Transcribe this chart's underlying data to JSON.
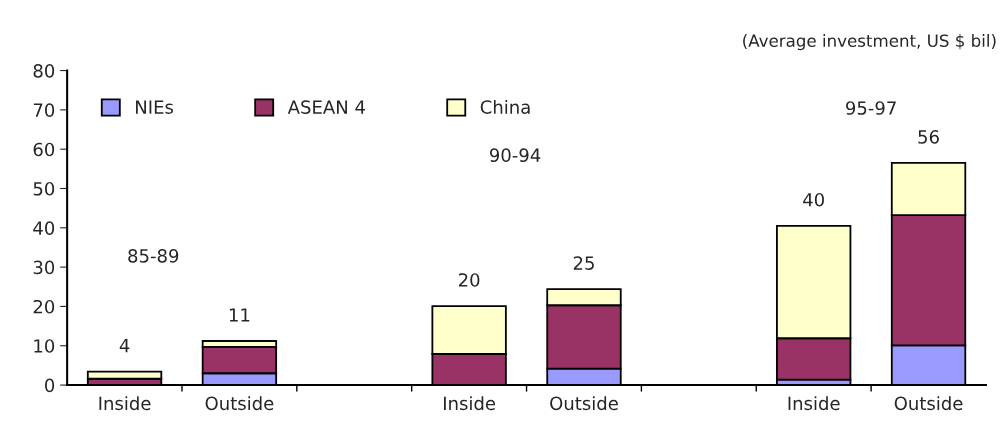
{
  "chart_data": {
    "type": "bar",
    "stacked": true,
    "subtitle": "(Average investment, US $ bil)",
    "categories": [
      "Inside",
      "Outside",
      null,
      "Inside",
      "Outside",
      null,
      "Inside",
      "Outside"
    ],
    "series": [
      {
        "name": "NIEs",
        "color": "#9999ff",
        "values": [
          null,
          3,
          null,
          null,
          4.2,
          null,
          1.4,
          10.1
        ]
      },
      {
        "name": "ASEAN 4",
        "color": "#993366",
        "values": [
          1.6,
          6.7,
          null,
          7.9,
          16.1,
          null,
          10.5,
          33.1
        ]
      },
      {
        "name": "China",
        "color": "#ffffcc",
        "values": [
          1.8,
          1.5,
          null,
          12.2,
          4.1,
          null,
          28.6,
          13.3
        ]
      }
    ],
    "totals": [
      "4",
      "11",
      null,
      "20",
      "25",
      null,
      "40",
      "56"
    ],
    "annotations": [
      "85-89",
      "90-94",
      "95-97"
    ],
    "ylim": [
      0,
      80
    ],
    "yticks": [
      0,
      10,
      20,
      30,
      40,
      50,
      60,
      70,
      80
    ],
    "legend": "top left",
    "grid": false
  }
}
